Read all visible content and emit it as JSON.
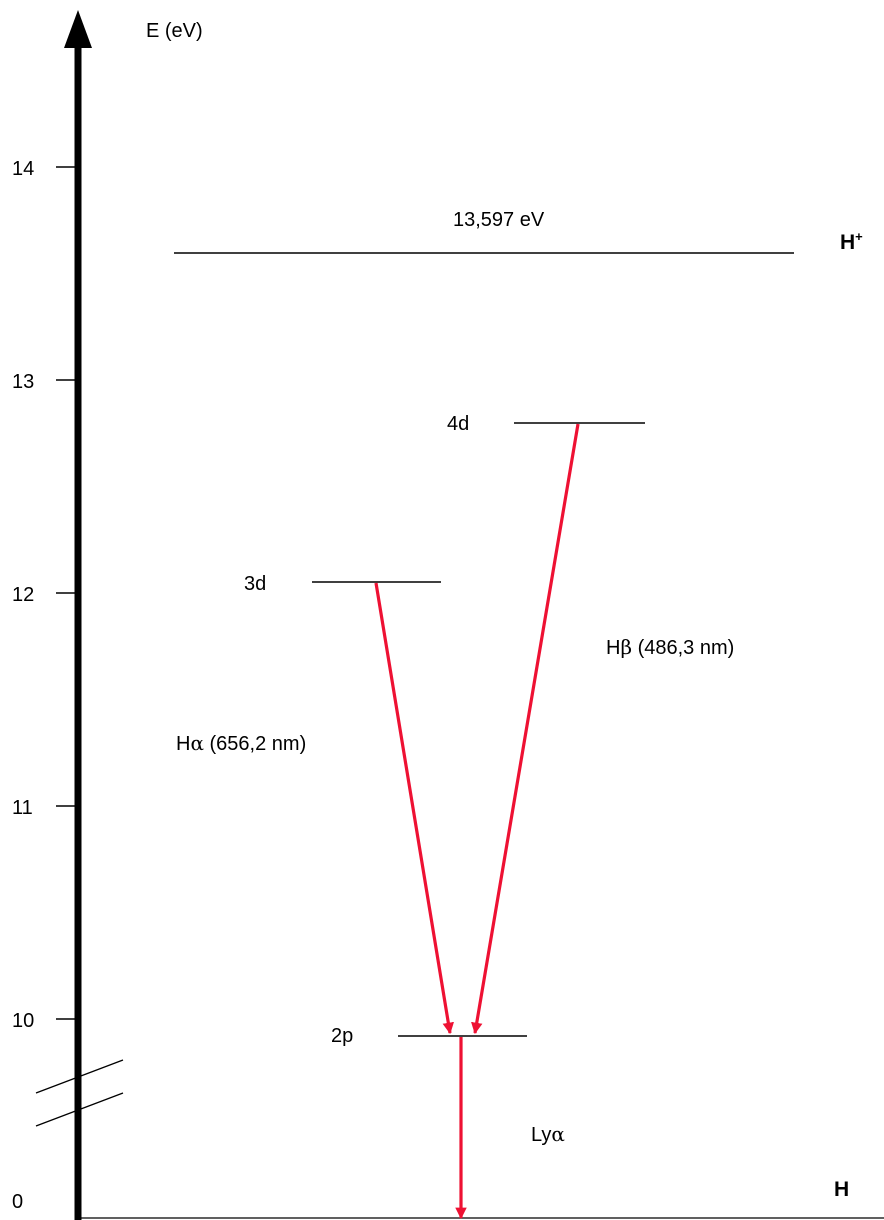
{
  "axis": {
    "label": "E (eV)",
    "tick_labels": [
      "14",
      "13",
      "12",
      "11",
      "10",
      "0"
    ],
    "break_marks": true
  },
  "levels": {
    "ion": {
      "energy_label": "13,597 eV",
      "species": "H",
      "superscript": "+"
    },
    "d4": {
      "label": "4d"
    },
    "d3": {
      "label": "3d"
    },
    "p2": {
      "label": "2p"
    },
    "ground": {
      "species": "H"
    }
  },
  "transitions": {
    "h_alpha": {
      "prefix": "H",
      "greek": "α",
      "suffix": " (656,2 nm)",
      "from": "3d",
      "to": "2p"
    },
    "h_beta": {
      "prefix": "H",
      "greek": "β",
      "suffix": " (486,3 nm)",
      "from": "4d",
      "to": "2p"
    },
    "ly_alpha": {
      "prefix": "Ly",
      "greek": "α",
      "from": "2p",
      "to": "ground"
    }
  },
  "colors": {
    "axis": "#000000",
    "level_line": "#000000",
    "transition_arrow": "#ee1133"
  }
}
